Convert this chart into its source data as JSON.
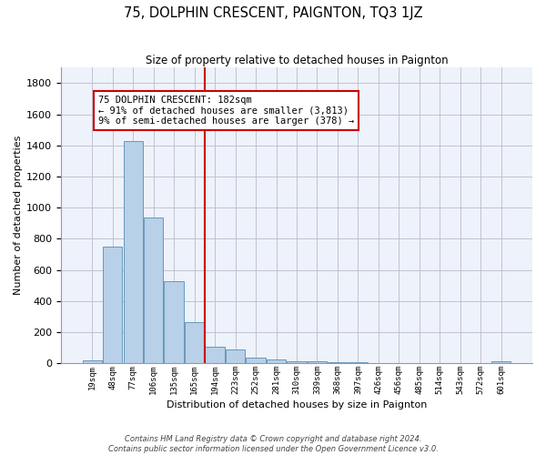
{
  "title": "75, DOLPHIN CRESCENT, PAIGNTON, TQ3 1JZ",
  "subtitle": "Size of property relative to detached houses in Paignton",
  "xlabel": "Distribution of detached houses by size in Paignton",
  "ylabel": "Number of detached properties",
  "bar_color": "#b8d0e8",
  "bar_edge_color": "#6699bb",
  "background_color": "#eef2fa",
  "grid_color": "#bbbbcc",
  "categories": [
    "19sqm",
    "48sqm",
    "77sqm",
    "106sqm",
    "135sqm",
    "165sqm",
    "194sqm",
    "223sqm",
    "252sqm",
    "281sqm",
    "310sqm",
    "339sqm",
    "368sqm",
    "397sqm",
    "426sqm",
    "456sqm",
    "485sqm",
    "514sqm",
    "543sqm",
    "572sqm",
    "601sqm"
  ],
  "values": [
    22,
    748,
    1425,
    940,
    530,
    268,
    105,
    92,
    38,
    28,
    15,
    12,
    10,
    8,
    5,
    4,
    3,
    2,
    2,
    1,
    12
  ],
  "ylim": [
    0,
    1900
  ],
  "yticks": [
    0,
    200,
    400,
    600,
    800,
    1000,
    1200,
    1400,
    1600,
    1800
  ],
  "line_x_index": 5.5,
  "annotation_text": "75 DOLPHIN CRESCENT: 182sqm\n← 91% of detached houses are smaller (3,813)\n9% of semi-detached houses are larger (378) →",
  "annotation_box_color": "#ffffff",
  "annotation_box_edge_color": "#cc0000",
  "line_color": "#cc0000",
  "footer_line1": "Contains HM Land Registry data © Crown copyright and database right 2024.",
  "footer_line2": "Contains public sector information licensed under the Open Government Licence v3.0."
}
